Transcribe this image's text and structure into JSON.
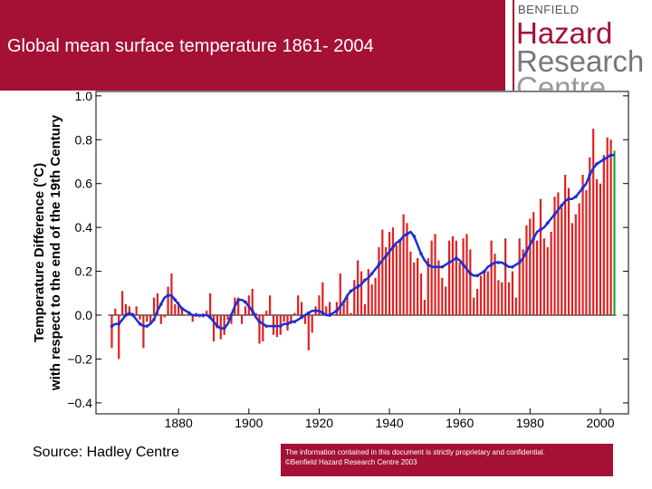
{
  "header": {
    "title": "Global mean surface temperature 1861- 2004"
  },
  "logo": {
    "small": "BENFIELD",
    "line1": "Hazard",
    "line2": "Research",
    "line3": "Centre"
  },
  "footer": {
    "source": "Source:  Hadley Centre",
    "notice_line1": "The information contained in this document is strictly proprietary and confidential.",
    "notice_line2": "©Benfield Hazard Research Centre 2003"
  },
  "colors": {
    "brand": "#a51035",
    "bars": "#e02020",
    "smooth": "#1a2fd6",
    "latest_bar": "#2a9d2a"
  },
  "chart_data": {
    "type": "bar",
    "ylabel_line1": "Temperature Difference (°C)",
    "ylabel_line2": "with respect to the end of the 19th Century",
    "ylim": [
      -0.45,
      1.02
    ],
    "xlim": [
      1856.5,
      2008
    ],
    "yticks": [
      "1.0",
      "0.8",
      "0.6",
      "0.4",
      "0.2",
      "0.0",
      "−0.2",
      "−0.4"
    ],
    "xticks": [
      "1880",
      "1900",
      "1920",
      "1940",
      "1960",
      "1980",
      "2000"
    ],
    "grid": false,
    "years": [
      1861,
      1862,
      1863,
      1864,
      1865,
      1866,
      1867,
      1868,
      1869,
      1870,
      1871,
      1872,
      1873,
      1874,
      1875,
      1876,
      1877,
      1878,
      1879,
      1880,
      1881,
      1882,
      1883,
      1884,
      1885,
      1886,
      1887,
      1888,
      1889,
      1890,
      1891,
      1892,
      1893,
      1894,
      1895,
      1896,
      1897,
      1898,
      1899,
      1900,
      1901,
      1902,
      1903,
      1904,
      1905,
      1906,
      1907,
      1908,
      1909,
      1910,
      1911,
      1912,
      1913,
      1914,
      1915,
      1916,
      1917,
      1918,
      1919,
      1920,
      1921,
      1922,
      1923,
      1924,
      1925,
      1926,
      1927,
      1928,
      1929,
      1930,
      1931,
      1932,
      1933,
      1934,
      1935,
      1936,
      1937,
      1938,
      1939,
      1940,
      1941,
      1942,
      1943,
      1944,
      1945,
      1946,
      1947,
      1948,
      1949,
      1950,
      1951,
      1952,
      1953,
      1954,
      1955,
      1956,
      1957,
      1958,
      1959,
      1960,
      1961,
      1962,
      1963,
      1964,
      1965,
      1966,
      1967,
      1968,
      1969,
      1970,
      1971,
      1972,
      1973,
      1974,
      1975,
      1976,
      1977,
      1978,
      1979,
      1980,
      1981,
      1982,
      1983,
      1984,
      1985,
      1986,
      1987,
      1988,
      1989,
      1990,
      1991,
      1992,
      1993,
      1994,
      1995,
      1996,
      1997,
      1998,
      1999,
      2000,
      2001,
      2002,
      2003,
      2004
    ],
    "annual_values": [
      -0.15,
      0.03,
      -0.2,
      0.11,
      0.05,
      0.04,
      0.01,
      0.04,
      -0.02,
      -0.15,
      -0.03,
      -0.04,
      0.08,
      0.1,
      -0.04,
      -0.01,
      0.13,
      0.19,
      0.05,
      0.06,
      0.03,
      0.0,
      0.01,
      -0.03,
      0.01,
      -0.01,
      -0.01,
      0.02,
      0.1,
      -0.12,
      -0.06,
      -0.11,
      -0.09,
      -0.02,
      -0.04,
      0.08,
      0.08,
      -0.04,
      0.04,
      0.09,
      0.12,
      0.01,
      -0.13,
      -0.12,
      0.02,
      0.09,
      -0.09,
      -0.1,
      -0.09,
      -0.03,
      -0.07,
      -0.04,
      0.01,
      0.09,
      0.06,
      -0.04,
      -0.16,
      -0.08,
      0.04,
      0.09,
      0.15,
      0.04,
      0.06,
      0.0,
      0.06,
      0.19,
      0.05,
      0.09,
      0.01,
      0.16,
      0.25,
      0.2,
      0.05,
      0.21,
      0.14,
      0.17,
      0.31,
      0.39,
      0.31,
      0.38,
      0.4,
      0.32,
      0.34,
      0.46,
      0.42,
      0.29,
      0.24,
      0.26,
      0.19,
      0.07,
      0.26,
      0.34,
      0.37,
      0.25,
      0.17,
      0.13,
      0.34,
      0.36,
      0.34,
      0.24,
      0.35,
      0.37,
      0.3,
      0.08,
      0.12,
      0.18,
      0.2,
      0.2,
      0.34,
      0.28,
      0.16,
      0.15,
      0.35,
      0.15,
      0.2,
      0.08,
      0.35,
      0.3,
      0.41,
      0.44,
      0.47,
      0.34,
      0.53,
      0.35,
      0.31,
      0.38,
      0.54,
      0.56,
      0.49,
      0.64,
      0.58,
      0.42,
      0.46,
      0.51,
      0.64,
      0.57,
      0.72,
      0.85,
      0.62,
      0.6,
      0.73,
      0.81,
      0.8,
      0.75
    ],
    "smoothed_values": [
      -0.05,
      -0.04,
      -0.04,
      -0.02,
      0.0,
      0.01,
      0.0,
      -0.02,
      -0.04,
      -0.05,
      -0.05,
      -0.04,
      -0.02,
      0.02,
      0.05,
      0.08,
      0.09,
      0.09,
      0.07,
      0.05,
      0.03,
      0.02,
      0.01,
      0.0,
      0.0,
      0.0,
      0.0,
      0.0,
      -0.01,
      -0.03,
      -0.05,
      -0.06,
      -0.06,
      -0.04,
      0.0,
      0.04,
      0.07,
      0.07,
      0.06,
      0.04,
      0.02,
      -0.01,
      -0.03,
      -0.04,
      -0.05,
      -0.05,
      -0.05,
      -0.05,
      -0.05,
      -0.04,
      -0.04,
      -0.03,
      -0.03,
      -0.02,
      -0.01,
      0.0,
      0.01,
      0.02,
      0.02,
      0.02,
      0.01,
      0.0,
      0.0,
      0.01,
      0.02,
      0.04,
      0.06,
      0.09,
      0.11,
      0.12,
      0.13,
      0.14,
      0.16,
      0.17,
      0.19,
      0.21,
      0.23,
      0.25,
      0.27,
      0.29,
      0.31,
      0.33,
      0.34,
      0.36,
      0.37,
      0.38,
      0.36,
      0.32,
      0.28,
      0.25,
      0.23,
      0.22,
      0.22,
      0.22,
      0.22,
      0.23,
      0.24,
      0.25,
      0.26,
      0.25,
      0.23,
      0.21,
      0.19,
      0.18,
      0.18,
      0.19,
      0.2,
      0.22,
      0.23,
      0.24,
      0.24,
      0.24,
      0.23,
      0.22,
      0.22,
      0.23,
      0.24,
      0.26,
      0.29,
      0.32,
      0.35,
      0.38,
      0.39,
      0.4,
      0.42,
      0.44,
      0.46,
      0.48,
      0.5,
      0.52,
      0.53,
      0.53,
      0.54,
      0.56,
      0.58,
      0.6,
      0.64,
      0.67,
      0.69,
      0.7,
      0.71,
      0.72,
      0.73,
      0.73
    ]
  }
}
